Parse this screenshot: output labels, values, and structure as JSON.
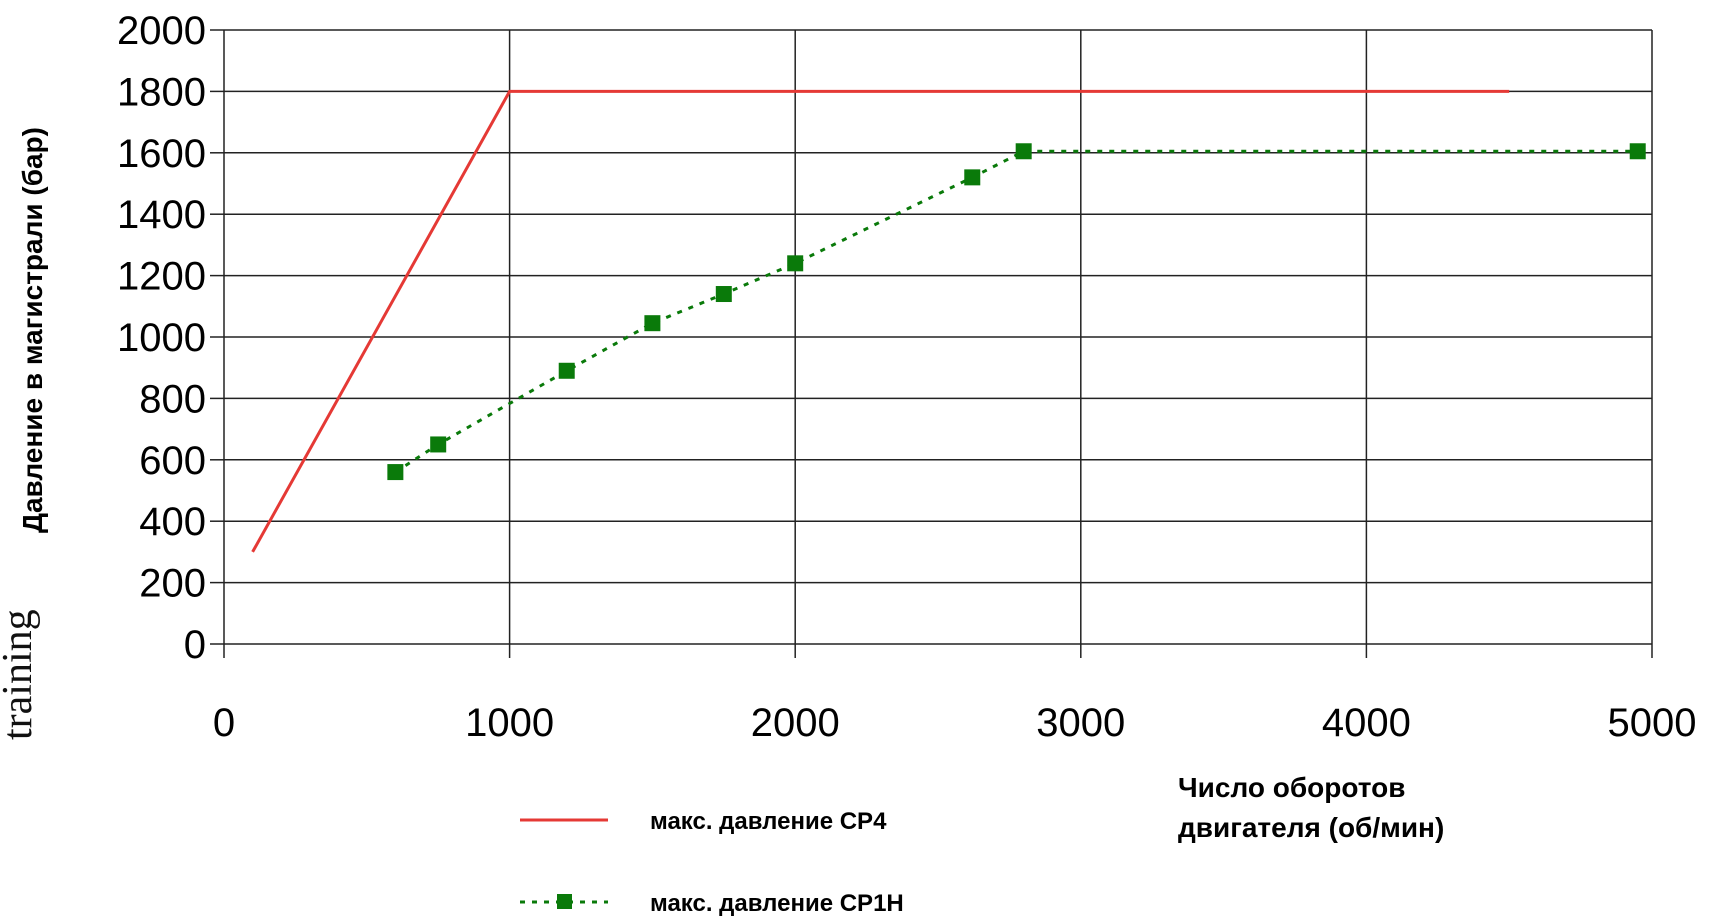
{
  "chart_data": {
    "type": "line",
    "xlabel_line1": "Число оборотов",
    "xlabel_line2": "двигателя (об/мин)",
    "ylabel": "Давление в магистрали (бар)",
    "xlim": [
      0,
      5000
    ],
    "ylim": [
      0,
      2000
    ],
    "x_ticks": [
      0,
      1000,
      2000,
      3000,
      4000,
      5000
    ],
    "y_ticks": [
      0,
      200,
      400,
      600,
      800,
      1000,
      1200,
      1400,
      1600,
      1800,
      2000
    ],
    "grid": true,
    "legend_position": "bottom",
    "series": [
      {
        "name": "макс. давление СР4",
        "color": "#e53935",
        "style": "solid",
        "marker": "none",
        "points": [
          [
            100,
            300
          ],
          [
            1000,
            1800
          ],
          [
            4500,
            1800
          ]
        ]
      },
      {
        "name": "макс. давление СР1Н",
        "color": "#0a7a0a",
        "style": "dotted",
        "marker": "square",
        "points": [
          [
            600,
            560
          ],
          [
            750,
            650
          ],
          [
            1200,
            890
          ],
          [
            1500,
            1045
          ],
          [
            1750,
            1140
          ],
          [
            2000,
            1240
          ],
          [
            2620,
            1520
          ],
          [
            2800,
            1605
          ],
          [
            4950,
            1605
          ]
        ]
      }
    ]
  },
  "watermark": "training"
}
